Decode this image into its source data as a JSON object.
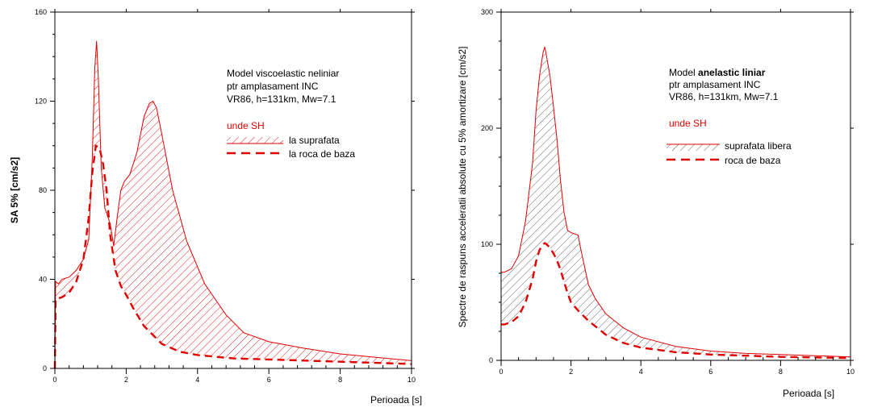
{
  "chart_data": [
    {
      "type": "area",
      "xlabel": "Perioada [s]",
      "ylabel": "SA 5% [cm/s2]",
      "xlim": [
        0,
        10
      ],
      "ylim": [
        0,
        160
      ],
      "xticks": [
        "0",
        "2",
        "4",
        "6",
        "8",
        "10"
      ],
      "yticks": [
        "0",
        "40",
        "80",
        "120",
        "160"
      ],
      "annotation": [
        "Model viscoelastic neliniar",
        "ptr amplasament INC",
        "VR86, h=131km, Mw=7.1"
      ],
      "wave_label": "unde SH",
      "legend_placement": "right",
      "series": [
        {
          "name": "la suprafata",
          "style": "solid-hatched",
          "color": "#e00000",
          "hatch_color": "#e00000",
          "x": [
            0,
            0.02,
            0.1,
            0.2,
            0.4,
            0.6,
            0.8,
            0.95,
            1.05,
            1.12,
            1.17,
            1.22,
            1.3,
            1.4,
            1.55,
            1.65,
            1.75,
            1.85,
            1.95,
            2.1,
            2.3,
            2.5,
            2.65,
            2.75,
            2.85,
            3.0,
            3.3,
            3.7,
            4.2,
            4.8,
            5.3,
            6.0,
            7.0,
            8.0,
            9.0,
            10.0
          ],
          "y": [
            0,
            39,
            38,
            40,
            41,
            44,
            49,
            58,
            95,
            135,
            147,
            130,
            90,
            72,
            65,
            55,
            68,
            80,
            84,
            87,
            97,
            113,
            119,
            120,
            117,
            105,
            80,
            57,
            38,
            24,
            16,
            12,
            9,
            6.5,
            5,
            3.5
          ]
        },
        {
          "name": "la roca de baza",
          "style": "dashed",
          "color": "#e00000",
          "x": [
            0,
            0.02,
            0.2,
            0.4,
            0.6,
            0.8,
            0.95,
            1.05,
            1.15,
            1.25,
            1.35,
            1.45,
            1.55,
            1.7,
            1.85,
            2.0,
            2.2,
            2.5,
            3.0,
            3.5,
            4.0,
            5.0,
            6.0,
            7.0,
            8.0,
            9.0,
            10.0
          ],
          "y": [
            0,
            31,
            32,
            34,
            39,
            49,
            68,
            88,
            100,
            99,
            92,
            80,
            60,
            44,
            37,
            33,
            27,
            19,
            11,
            7.5,
            6,
            4.5,
            4,
            3.5,
            3,
            2.5,
            2
          ]
        }
      ]
    },
    {
      "type": "area",
      "xlabel": "Perioada [s]",
      "ylabel": "Spectre de raspuns acceleratii absolute cu 5% amortizare [cm/s2]",
      "xlim": [
        0,
        10
      ],
      "ylim": [
        0,
        300
      ],
      "xticks": [
        "0",
        "2",
        "4",
        "6",
        "8",
        "10"
      ],
      "yticks": [
        "0",
        "100",
        "200",
        "300"
      ],
      "annotation_parts": [
        [
          "Model ",
          "anelastic liniar"
        ],
        [
          "ptr amplasament INC",
          ""
        ],
        [
          "VR86, h=131km, Mw=7.1",
          ""
        ]
      ],
      "wave_label": "unde SH",
      "legend_placement": "right",
      "series": [
        {
          "name": "suprafata libera",
          "style": "solid-hatched",
          "color": "#e00000",
          "hatch_color": "#555555",
          "x": [
            0,
            0.1,
            0.3,
            0.5,
            0.7,
            0.9,
            1.0,
            1.1,
            1.2,
            1.25,
            1.3,
            1.4,
            1.5,
            1.6,
            1.7,
            1.8,
            1.9,
            2.0,
            2.2,
            2.3,
            2.5,
            2.7,
            3.0,
            3.5,
            4.0,
            5.0,
            6.0,
            7.0,
            8.0,
            9.0,
            10.0
          ],
          "y": [
            76,
            76,
            79,
            90,
            120,
            170,
            215,
            245,
            265,
            270,
            262,
            245,
            218,
            190,
            155,
            128,
            112,
            110,
            108,
            93,
            65,
            53,
            40,
            28,
            20,
            12,
            8,
            6,
            5,
            4,
            3
          ]
        },
        {
          "name": "roca de baza",
          "style": "dashed",
          "color": "#e00000",
          "x": [
            0,
            0.1,
            0.3,
            0.5,
            0.7,
            0.9,
            1.0,
            1.1,
            1.2,
            1.25,
            1.3,
            1.4,
            1.5,
            1.6,
            1.7,
            1.8,
            1.9,
            2.0,
            2.2,
            2.5,
            3.0,
            3.5,
            4.0,
            5.0,
            6.0,
            7.0,
            8.0,
            9.0,
            10.0
          ],
          "y": [
            31,
            31,
            33,
            38,
            50,
            70,
            85,
            95,
            100,
            101,
            100,
            97,
            92,
            86,
            78,
            68,
            58,
            50,
            43,
            34,
            22,
            15,
            11,
            7,
            5,
            4,
            3,
            2.5,
            2
          ]
        }
      ]
    }
  ]
}
